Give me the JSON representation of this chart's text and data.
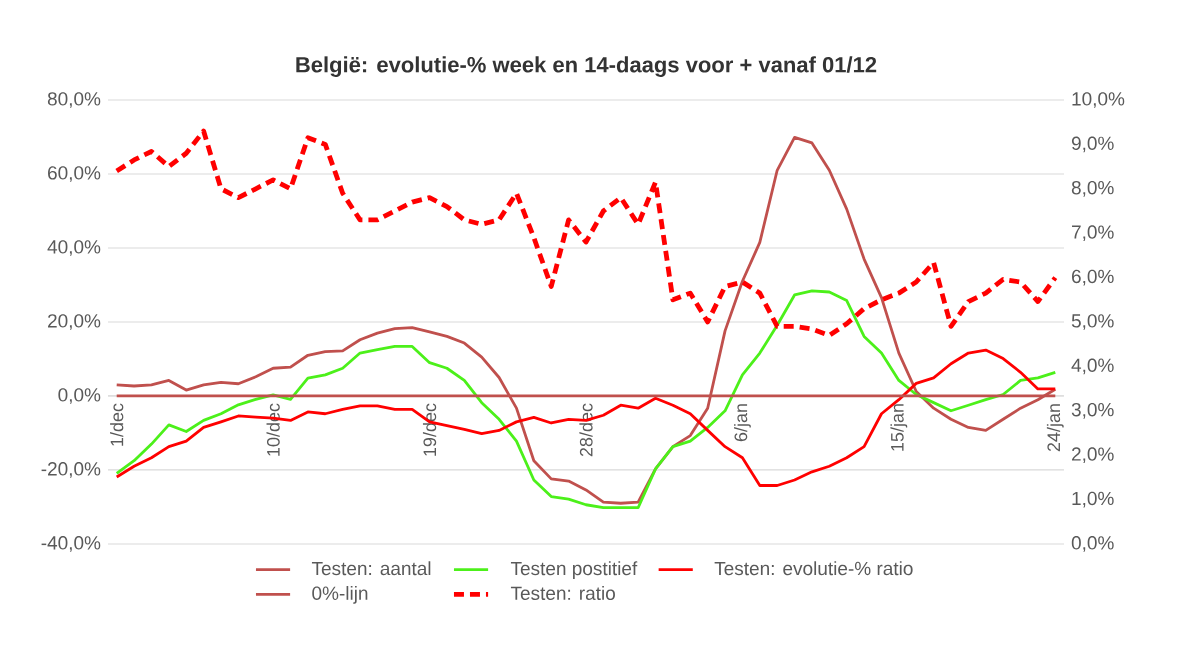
{
  "chart_data": {
    "type": "line",
    "title": "België: evolutie-%  week en 14-daags voor + vanaf 01/12",
    "categories": [
      "1/dec",
      null,
      null,
      null,
      null,
      null,
      null,
      null,
      null,
      "10/dec",
      null,
      null,
      null,
      null,
      null,
      null,
      null,
      null,
      "19/dec",
      null,
      null,
      null,
      null,
      null,
      null,
      null,
      null,
      "28/dec",
      null,
      null,
      null,
      null,
      null,
      null,
      null,
      null,
      "6/jan",
      null,
      null,
      null,
      null,
      null,
      null,
      null,
      null,
      "15/jan",
      null,
      null,
      null,
      null,
      null,
      null,
      null,
      null,
      "24/jan"
    ],
    "series": [
      {
        "name": "Testen: aantal",
        "color": "#c0504d",
        "line_style": "solid",
        "axis": "y",
        "values": [
          3.0,
          2.7,
          3.0,
          4.2,
          1.6,
          3.0,
          3.7,
          3.3,
          5.2,
          7.5,
          7.8,
          11,
          12,
          12.2,
          15.2,
          17,
          18.2,
          18.5,
          17.3,
          16.1,
          14.3,
          10.5,
          5,
          -3.3,
          -17.5,
          -22.4,
          -23,
          -25.4,
          -28.7,
          -29,
          -28.7,
          -19.7,
          -13.7,
          -10.7,
          -3.3,
          17.6,
          31,
          41.5,
          61,
          69.9,
          68.4,
          61,
          50.5,
          37,
          26.6,
          11.6,
          1.2,
          -3.3,
          -6.3,
          -8.5,
          -9.3,
          -6.3,
          -3.3,
          -1,
          1.8
        ]
      },
      {
        "name": "Testen postitief",
        "color": "#4cf01a",
        "line_style": "solid",
        "axis": "y",
        "values": [
          -20.9,
          -17.5,
          -13,
          -7.8,
          -9.6,
          -6.6,
          -4.8,
          -2.4,
          -0.9,
          0.3,
          -0.9,
          4.8,
          5.7,
          7.5,
          11.6,
          12.5,
          13.4,
          13.4,
          9,
          7.5,
          4.2,
          -1.8,
          -6.3,
          -12.2,
          -22.7,
          -27.2,
          -27.9,
          -29.4,
          -30.2,
          -30.2,
          -30.2,
          -19.7,
          -13.7,
          -12.2,
          -8.5,
          -4,
          5.7,
          11.6,
          19.1,
          27.3,
          28.4,
          28.1,
          25.8,
          16.1,
          11.6,
          4.2,
          0.4,
          -1.8,
          -4,
          -2.5,
          -1,
          0.4,
          4.2,
          4.9,
          6.4
        ]
      },
      {
        "name": "Testen: evolutie-% ratio",
        "color": "#ff0000",
        "line_style": "solid",
        "axis": "y",
        "values": [
          -21.9,
          -19,
          -16.7,
          -13.7,
          -12.2,
          -8.5,
          -7,
          -5.4,
          -5.7,
          -6,
          -6.6,
          -4.3,
          -4.8,
          -3.6,
          -2.7,
          -2.7,
          -3.6,
          -3.6,
          -7,
          -8,
          -9,
          -10.2,
          -9.3,
          -7,
          -5.8,
          -7.3,
          -6.3,
          -6.6,
          -5.2,
          -2.5,
          -3.3,
          -0.6,
          -2.5,
          -4.8,
          -9.3,
          -13.7,
          -16.7,
          -24.2,
          -24.2,
          -22.7,
          -20.5,
          -19,
          -16.7,
          -13.7,
          -4.8,
          -1,
          3.4,
          4.9,
          8.7,
          11.6,
          12.4,
          10.1,
          6.4,
          1.9,
          1.9
        ]
      },
      {
        "name": "0%-lijn",
        "color": "#c0504d",
        "line_style": "solid",
        "axis": "y",
        "values": [
          0,
          0,
          0,
          0,
          0,
          0,
          0,
          0,
          0,
          0,
          0,
          0,
          0,
          0,
          0,
          0,
          0,
          0,
          0,
          0,
          0,
          0,
          0,
          0,
          0,
          0,
          0,
          0,
          0,
          0,
          0,
          0,
          0,
          0,
          0,
          0,
          0,
          0,
          0,
          0,
          0,
          0,
          0,
          0,
          0,
          0,
          0,
          0,
          0,
          0,
          0,
          0,
          0,
          0,
          0
        ]
      },
      {
        "name": "Testen: ratio",
        "color": "#ff0000",
        "line_style": "dashed",
        "axis": "y2",
        "values": [
          8.4,
          8.65,
          8.84,
          8.5,
          8.8,
          9.3,
          8.0,
          7.8,
          8.0,
          8.2,
          8.0,
          9.15,
          9.0,
          7.9,
          7.3,
          7.3,
          7.5,
          7.7,
          7.8,
          7.6,
          7.3,
          7.2,
          7.3,
          7.9,
          6.9,
          5.8,
          7.3,
          6.8,
          7.5,
          7.8,
          7.2,
          8.15,
          5.5,
          5.65,
          5.0,
          5.8,
          5.9,
          5.65,
          4.9,
          4.9,
          4.84,
          4.7,
          4.96,
          5.3,
          5.5,
          5.65,
          5.9,
          6.34,
          4.9,
          5.46,
          5.65,
          5.96,
          5.9,
          5.46,
          6.0
        ]
      }
    ],
    "ylim": [
      -40,
      80
    ],
    "yticks": [
      {
        "value": -40,
        "label": "-40,0%"
      },
      {
        "value": -20,
        "label": "-20,0%"
      },
      {
        "value": 0,
        "label": "0,0%"
      },
      {
        "value": 20,
        "label": "20,0%"
      },
      {
        "value": 40,
        "label": "40,0%"
      },
      {
        "value": 60,
        "label": "60,0%"
      },
      {
        "value": 80,
        "label": "80,0%"
      }
    ],
    "y2lim": [
      0,
      10
    ],
    "y2ticks": [
      {
        "value": 0,
        "label": "0,0%"
      },
      {
        "value": 1,
        "label": "1,0%"
      },
      {
        "value": 2,
        "label": "2,0%"
      },
      {
        "value": 3,
        "label": "3,0%"
      },
      {
        "value": 4,
        "label": "4,0%"
      },
      {
        "value": 5,
        "label": "5,0%"
      },
      {
        "value": 6,
        "label": "6,0%"
      },
      {
        "value": 7,
        "label": "7,0%"
      },
      {
        "value": 8,
        "label": "8,0%"
      },
      {
        "value": 9,
        "label": "9,0%"
      },
      {
        "value": 10,
        "label": "10,0%"
      }
    ],
    "grid": "y",
    "legend": "bottom"
  }
}
